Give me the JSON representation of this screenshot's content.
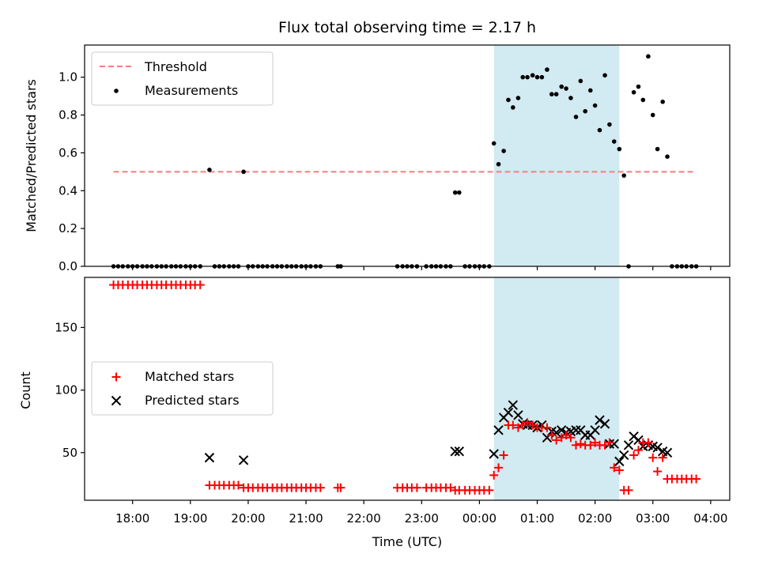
{
  "chart_data": {
    "title": "Flux total observing time = 2.17 h",
    "xlabel": "Time (UTC)",
    "x_range_hours": [
      17.17,
      28.33
    ],
    "x_tick_hours": [
      18,
      19,
      20,
      21,
      22,
      23,
      24,
      25,
      26,
      27,
      28
    ],
    "x_tick_labels": [
      "18:00",
      "19:00",
      "20:00",
      "21:00",
      "22:00",
      "23:00",
      "00:00",
      "01:00",
      "02:00",
      "03:00",
      "04:00"
    ],
    "highlight_span_hours": [
      24.25,
      26.42
    ],
    "highlight_color": "#add8e6",
    "top": {
      "type": "scatter",
      "ylabel": "Matched/Predicted stars",
      "ylim": [
        0,
        1.17
      ],
      "y_ticks": [
        0.0,
        0.2,
        0.4,
        0.6,
        0.8,
        1.0
      ],
      "y_tick_labels": [
        "0.0",
        "0.2",
        "0.4",
        "0.6",
        "0.8",
        "1.0"
      ],
      "legend": {
        "placement": "upper-left",
        "entries": [
          "Threshold",
          "Measurements"
        ]
      },
      "threshold": {
        "value": 0.5,
        "x_range_hours": [
          17.67,
          27.73
        ],
        "color": "#f08080"
      },
      "measurements": {
        "color": "#000000",
        "x": [
          17.67,
          17.75,
          17.83,
          17.92,
          18.0,
          18.08,
          18.17,
          18.25,
          18.33,
          18.42,
          18.5,
          18.58,
          18.67,
          18.75,
          18.83,
          18.92,
          19.0,
          19.08,
          19.17,
          19.33,
          19.42,
          19.5,
          19.58,
          19.67,
          19.75,
          19.83,
          19.92,
          20.0,
          20.08,
          20.17,
          20.25,
          20.33,
          20.42,
          20.5,
          20.58,
          20.67,
          20.75,
          20.83,
          20.92,
          21.0,
          21.08,
          21.17,
          21.25,
          21.55,
          21.6,
          22.58,
          22.67,
          22.75,
          22.83,
          22.92,
          23.08,
          23.17,
          23.25,
          23.33,
          23.42,
          23.5,
          23.58,
          23.65,
          23.75,
          23.83,
          23.92,
          24.0,
          24.08,
          24.17,
          24.25,
          24.33,
          24.42,
          24.5,
          24.58,
          24.67,
          24.75,
          24.83,
          24.92,
          25.0,
          25.08,
          25.17,
          25.25,
          25.33,
          25.42,
          25.5,
          25.58,
          25.67,
          25.75,
          25.83,
          25.92,
          26.0,
          26.08,
          26.17,
          26.25,
          26.33,
          26.42,
          26.5,
          26.58,
          26.67,
          26.75,
          26.83,
          26.92,
          27.0,
          27.08,
          27.17,
          27.25,
          27.33,
          27.42,
          27.5,
          27.58,
          27.67,
          27.75
        ],
        "y": [
          0.0,
          0.0,
          0.0,
          0.0,
          0.0,
          0.0,
          0.0,
          0.0,
          0.0,
          0.0,
          0.0,
          0.0,
          0.0,
          0.0,
          0.0,
          0.0,
          0.0,
          0.0,
          0.0,
          0.51,
          0.0,
          0.0,
          0.0,
          0.0,
          0.0,
          0.0,
          0.5,
          0.0,
          0.0,
          0.0,
          0.0,
          0.0,
          0.0,
          0.0,
          0.0,
          0.0,
          0.0,
          0.0,
          0.0,
          0.0,
          0.0,
          0.0,
          0.0,
          0.0,
          0.0,
          0.0,
          0.0,
          0.0,
          0.0,
          0.0,
          0.0,
          0.0,
          0.0,
          0.0,
          0.0,
          0.0,
          0.39,
          0.39,
          0.0,
          0.0,
          0.0,
          0.0,
          0.0,
          0.0,
          0.65,
          0.54,
          0.61,
          0.88,
          0.84,
          0.89,
          1.0,
          1.0,
          1.01,
          1.0,
          1.0,
          1.04,
          0.91,
          0.91,
          0.95,
          0.94,
          0.89,
          0.79,
          0.98,
          0.82,
          0.93,
          0.85,
          0.72,
          1.01,
          0.75,
          0.66,
          0.62,
          0.48,
          0.0,
          0.92,
          0.95,
          0.88,
          1.11,
          0.8,
          0.62,
          0.87,
          0.58,
          0.0,
          0.0,
          0.0,
          0.0,
          0.0,
          0.0
        ]
      }
    },
    "bottom": {
      "type": "scatter",
      "ylabel": "Count",
      "ylim": [
        12,
        190
      ],
      "y_ticks": [
        50,
        100,
        150
      ],
      "y_tick_labels": [
        "50",
        "100",
        "150"
      ],
      "legend": {
        "placement": "center-left",
        "entries": [
          "Matched stars",
          "Predicted stars"
        ]
      },
      "matched": {
        "color": "#ff0000",
        "marker": "plus",
        "x": [
          17.67,
          17.75,
          17.83,
          17.92,
          18.0,
          18.08,
          18.17,
          18.25,
          18.33,
          18.42,
          18.5,
          18.58,
          18.67,
          18.75,
          18.83,
          18.92,
          19.0,
          19.08,
          19.17,
          19.33,
          19.42,
          19.5,
          19.58,
          19.67,
          19.75,
          19.83,
          19.92,
          20.0,
          20.08,
          20.17,
          20.25,
          20.33,
          20.42,
          20.5,
          20.58,
          20.67,
          20.75,
          20.83,
          20.92,
          21.0,
          21.08,
          21.17,
          21.25,
          21.55,
          21.6,
          22.58,
          22.67,
          22.75,
          22.83,
          22.92,
          23.08,
          23.17,
          23.25,
          23.33,
          23.42,
          23.5,
          23.58,
          23.65,
          23.75,
          23.83,
          23.92,
          24.0,
          24.08,
          24.17,
          24.25,
          24.33,
          24.42,
          24.5,
          24.58,
          24.67,
          24.75,
          24.83,
          24.92,
          25.0,
          25.08,
          25.17,
          25.25,
          25.33,
          25.42,
          25.5,
          25.58,
          25.67,
          25.75,
          25.83,
          25.92,
          26.0,
          26.08,
          26.17,
          26.25,
          26.33,
          26.42,
          26.5,
          26.58,
          26.67,
          26.75,
          26.83,
          26.92,
          27.0,
          27.08,
          27.17,
          27.25,
          27.33,
          27.42,
          27.5,
          27.58,
          27.67,
          27.75
        ],
        "y": [
          184,
          184,
          184,
          184,
          184,
          184,
          184,
          184,
          184,
          184,
          184,
          184,
          184,
          184,
          184,
          184,
          184,
          184,
          184,
          24,
          24,
          24,
          24,
          24,
          24,
          24,
          22,
          22,
          22,
          22,
          22,
          22,
          22,
          22,
          22,
          22,
          22,
          22,
          22,
          22,
          22,
          22,
          22,
          22,
          22,
          22,
          22,
          22,
          22,
          22,
          22,
          22,
          22,
          22,
          22,
          22,
          20,
          20,
          20,
          20,
          20,
          20,
          20,
          20,
          32,
          38,
          48,
          72,
          72,
          70,
          72,
          74,
          72,
          70,
          70,
          70,
          64,
          60,
          62,
          64,
          62,
          56,
          57,
          56,
          56,
          58,
          56,
          56,
          58,
          38,
          36,
          20,
          20,
          48,
          52,
          58,
          58,
          46,
          35,
          46,
          29,
          29,
          29,
          29,
          29,
          29,
          29
        ]
      },
      "predicted": {
        "color": "#000000",
        "marker": "cross",
        "x": [
          19.33,
          19.92,
          23.58,
          23.65,
          24.25,
          24.33,
          24.42,
          24.5,
          24.58,
          24.67,
          24.75,
          24.83,
          24.92,
          25.0,
          25.08,
          25.17,
          25.25,
          25.33,
          25.42,
          25.5,
          25.58,
          25.67,
          25.75,
          25.83,
          25.92,
          26.0,
          26.08,
          26.17,
          26.25,
          26.33,
          26.42,
          26.5,
          26.58,
          26.67,
          26.75,
          26.83,
          26.92,
          27.0,
          27.08,
          27.17,
          27.25
        ],
        "y": [
          46,
          44,
          51,
          51,
          49,
          68,
          78,
          82,
          88,
          80,
          73,
          72,
          72,
          70,
          72,
          62,
          67,
          66,
          68,
          66,
          67,
          68,
          68,
          64,
          64,
          68,
          76,
          73,
          57,
          57,
          43,
          48,
          56,
          63,
          60,
          55,
          56,
          55,
          54,
          51,
          50
        ]
      }
    }
  }
}
